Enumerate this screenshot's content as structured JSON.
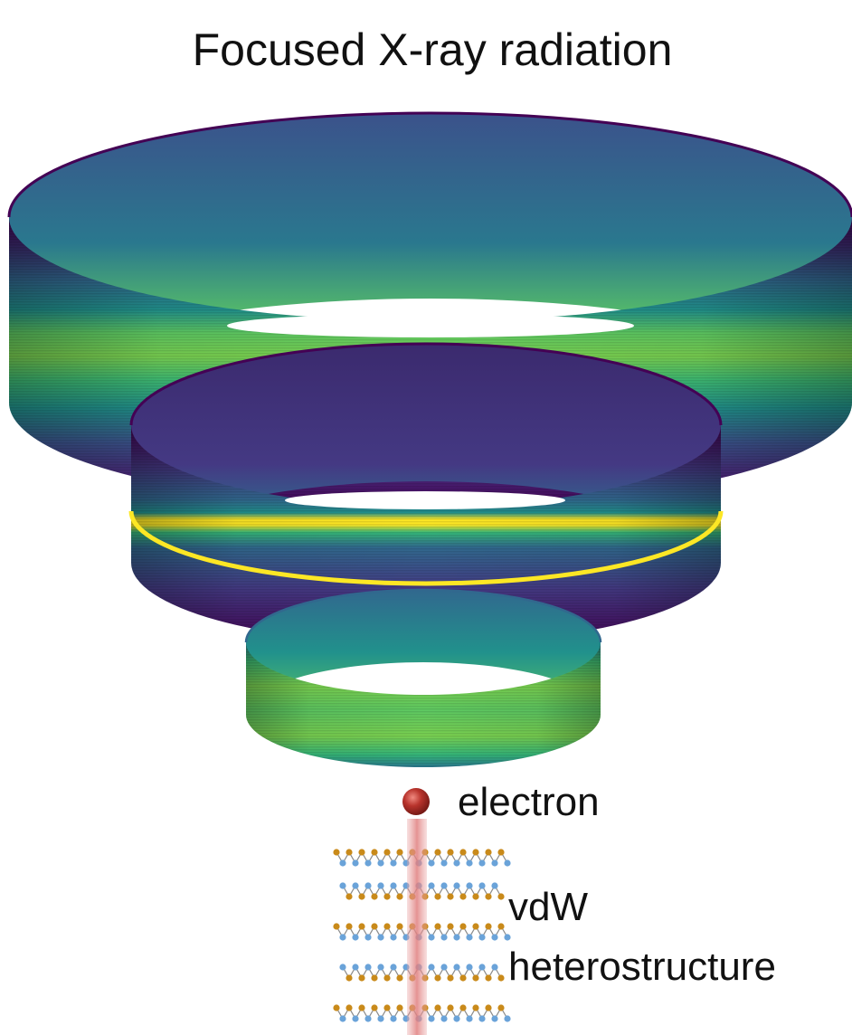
{
  "title": "Focused X-ray radiation",
  "electron_label": "electron",
  "sample_label_line1": "vdW",
  "sample_label_line2": "heterostructure",
  "colors": {
    "viridis_dark": "#440154",
    "viridis_mid": "#31688e",
    "viridis_teal": "#21918c",
    "viridis_green": "#5ec962",
    "viridis_yellow": "#fde725",
    "electron": "#b8332c",
    "beam": "#e9a5a5",
    "atom_metal": "#c98a1a",
    "atom_chalcogen": "#6aa3d9"
  },
  "rings": [
    {
      "name": "outer-ring",
      "profile": "broad-green-band"
    },
    {
      "name": "middle-ring",
      "profile": "sharp-yellow-line"
    },
    {
      "name": "inner-ring",
      "profile": "mostly-green"
    }
  ]
}
